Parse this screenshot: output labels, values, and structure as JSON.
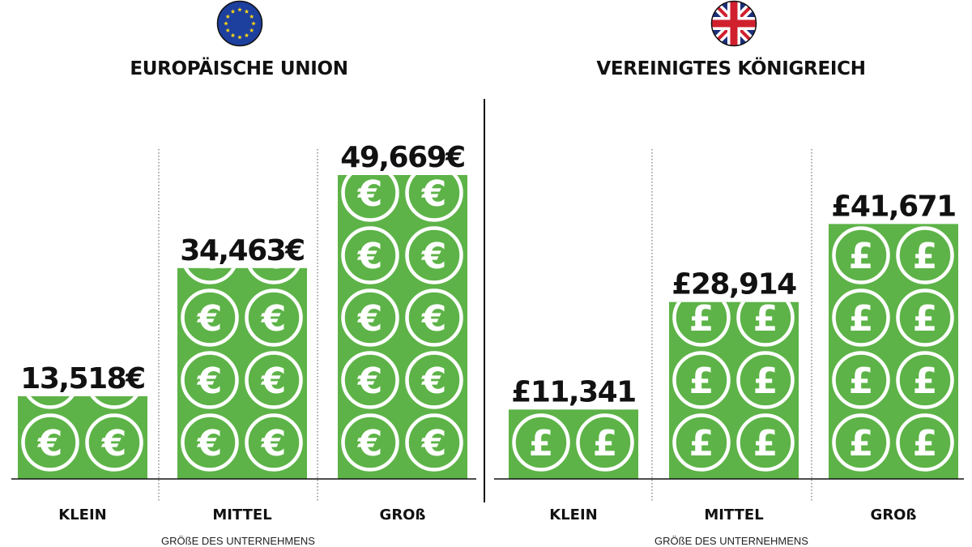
{
  "colors": {
    "bar": "#5db347",
    "coin_stroke": "#ffffff",
    "text": "#111111",
    "eu_flag_blue": "#1d3f9e",
    "eu_flag_stars": "#f7d417",
    "uk_flag_blue": "#1a2f7a",
    "uk_flag_red": "#d0202e"
  },
  "icons": {
    "eu": "eu-flag-icon",
    "uk": "uk-flag-icon",
    "euro_coin": "euro-coin-icon",
    "pound_coin": "pound-coin-icon"
  },
  "chart_data": [
    {
      "type": "bar",
      "title": "EUROPÄISCHE UNION",
      "categories": [
        "KLEIN",
        "MITTEL",
        "GROß"
      ],
      "values": [
        13518,
        34463,
        49669
      ],
      "value_labels": [
        "13,518€",
        "34,463€",
        "49,669€"
      ],
      "currency_symbol": "€",
      "xlabel": "GRÖßE DES UNTERNEHMENS",
      "ylabel": "",
      "grid": false
    },
    {
      "type": "bar",
      "title": "VEREINIGTES KÖNIGREICH",
      "categories": [
        "KLEIN",
        "MITTEL",
        "GROß"
      ],
      "values": [
        11341,
        28914,
        41671
      ],
      "value_labels": [
        "£11,341",
        "£28,914",
        "£41,671"
      ],
      "currency_symbol": "£",
      "xlabel": "GRÖßE DES UNTERNEHMENS",
      "ylabel": "",
      "grid": false
    }
  ]
}
